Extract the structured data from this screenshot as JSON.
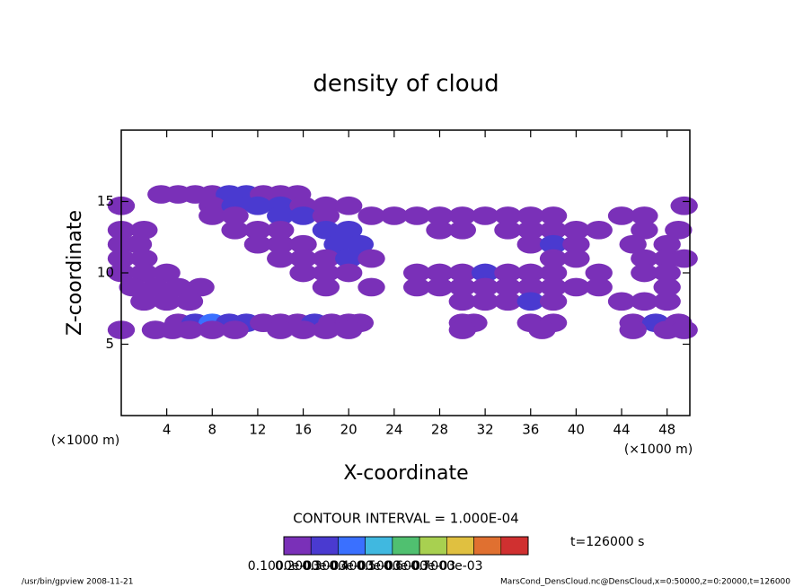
{
  "chart_data": {
    "type": "contour",
    "title": "density of cloud",
    "x_label": "X-coordinate",
    "y_label": "Z-coordinate",
    "x_unit": "(×1000 m)",
    "y_unit": "(×1000 m)",
    "contour_interval": "CONTOUR INTERVAL = 1.000E-04",
    "time_label": "t=126000 s",
    "footer_left": "/usr/bin/gpview  2008-11-21",
    "footer_right": "MarsCond_DensCloud.nc@DensCloud,x=0:50000,z=0:20000,t=126000",
    "xlim": [
      0,
      50
    ],
    "ylim": [
      0,
      20
    ],
    "xticks": [
      4,
      8,
      12,
      16,
      20,
      24,
      28,
      32,
      36,
      40,
      44,
      48
    ],
    "yticks": [
      5,
      10,
      15
    ],
    "x": [
      3.5,
      5,
      6.5,
      8,
      9.5,
      11,
      12.5,
      14,
      15.5,
      0,
      8,
      10,
      12,
      14,
      16,
      18,
      20,
      49.5,
      8,
      10,
      14,
      16,
      18,
      22,
      24,
      26,
      28,
      30,
      32,
      34,
      36,
      38,
      44,
      46,
      0,
      2,
      10,
      12,
      14,
      18,
      20,
      28,
      30,
      34,
      36,
      38,
      40,
      42,
      46,
      49,
      0,
      1.5,
      12,
      14,
      16,
      19,
      21,
      36,
      38,
      40,
      45,
      48,
      0,
      2,
      14,
      16,
      18,
      20,
      22,
      38,
      40,
      46,
      48,
      49.5,
      0,
      2,
      4,
      16,
      18,
      20,
      26,
      28,
      30,
      32,
      34,
      36,
      38,
      42,
      46,
      48,
      1,
      3,
      5,
      7,
      18,
      22,
      26,
      28,
      30,
      32,
      34,
      36,
      38,
      40,
      42,
      48,
      2,
      4,
      6,
      30,
      32,
      34,
      36,
      38,
      44,
      46,
      48,
      5,
      6.5,
      8,
      9.5,
      11,
      12.5,
      14,
      15.5,
      17,
      18.5,
      20,
      21,
      30,
      31,
      36,
      38,
      45,
      47,
      49,
      0,
      3,
      4.5,
      6,
      8,
      10,
      14,
      16,
      18,
      20,
      30,
      37,
      45,
      48,
      49.5
    ],
    "z": [
      15.5,
      15.5,
      15.5,
      15.5,
      15.5,
      15.5,
      15.5,
      15.5,
      15.5,
      14.7,
      14.7,
      14.7,
      14.7,
      14.7,
      14.7,
      14.7,
      14.7,
      14.7,
      14,
      14,
      14,
      14,
      14,
      14,
      14,
      14,
      14,
      14,
      14,
      14,
      14,
      14,
      14,
      14,
      13,
      13,
      13,
      13,
      13,
      13,
      13,
      13,
      13,
      13,
      13,
      13,
      13,
      13,
      13,
      13,
      12,
      12,
      12,
      12,
      12,
      12,
      12,
      12,
      12,
      12,
      12,
      12,
      11,
      11,
      11,
      11,
      11,
      11,
      11,
      11,
      11,
      11,
      11,
      11,
      10,
      10,
      10,
      10,
      10,
      10,
      10,
      10,
      10,
      10,
      10,
      10,
      10,
      10,
      10,
      10,
      9,
      9,
      9,
      9,
      9,
      9,
      9,
      9,
      9,
      9,
      9,
      9,
      9,
      9,
      9,
      9,
      8,
      8,
      8,
      8,
      8,
      8,
      8,
      8,
      8,
      8,
      8,
      6.5,
      6.5,
      6.5,
      6.5,
      6.5,
      6.5,
      6.5,
      6.5,
      6.5,
      6.5,
      6.5,
      6.5,
      6.5,
      6.5,
      6.5,
      6.5,
      6.5,
      6.5,
      6.5,
      6,
      6,
      6,
      6,
      6,
      6,
      6,
      6,
      6,
      6,
      6,
      6,
      6,
      6,
      6
    ],
    "values": [
      0.00012,
      0.00013,
      0.00012,
      0.00015,
      0.00026,
      0.00022,
      0.00016,
      0.00014,
      0.00013,
      0.00012,
      0.00015,
      0.00022,
      0.0002,
      0.00026,
      0.00018,
      0.00015,
      0.00013,
      0.00013,
      0.00014,
      0.00016,
      0.00028,
      0.00022,
      0.00016,
      0.00013,
      0.00013,
      0.00014,
      0.00013,
      0.00013,
      0.00014,
      0.00013,
      0.00013,
      0.00012,
      0.00012,
      0.00012,
      0.00012,
      0.00012,
      0.00014,
      0.00016,
      0.00015,
      0.0002,
      0.00024,
      0.00013,
      0.00013,
      0.00013,
      0.00014,
      0.00016,
      0.00015,
      0.00013,
      0.00012,
      0.00012,
      0.00013,
      0.00013,
      0.00015,
      0.00018,
      0.00016,
      0.00026,
      0.00022,
      0.00013,
      0.0002,
      0.00015,
      0.00013,
      0.00012,
      0.00014,
      0.00013,
      0.00016,
      0.00019,
      0.00018,
      0.00028,
      0.00015,
      0.00013,
      0.00013,
      0.00012,
      0.00013,
      0.00013,
      0.00015,
      0.00014,
      0.00013,
      0.00015,
      0.00016,
      0.00015,
      0.00013,
      0.00015,
      0.00018,
      0.0002,
      0.00016,
      0.00014,
      0.00013,
      0.00012,
      0.00012,
      0.00013,
      0.00014,
      0.00015,
      0.00018,
      0.00015,
      0.00013,
      0.00014,
      0.00014,
      0.00015,
      0.00016,
      0.00018,
      0.00017,
      0.00015,
      0.00014,
      0.00013,
      0.00012,
      0.00013,
      0.00013,
      0.00014,
      0.00013,
      0.00014,
      0.00015,
      0.00017,
      0.00022,
      0.00015,
      0.00013,
      0.00018,
      0.00013,
      0.00016,
      0.00022,
      0.00034,
      0.00026,
      0.0002,
      0.00016,
      0.00016,
      0.00018,
      0.0002,
      0.00018,
      0.00016,
      0.00014,
      0.00013,
      0.00015,
      0.00013,
      0.00013,
      0.00016,
      0.0002,
      0.00018,
      0.00013,
      0.00013,
      0.00014,
      0.00015,
      0.00016,
      0.00015,
      0.00014,
      0.00015,
      0.00016,
      0.00015,
      0.00013,
      0.00012,
      0.00013,
      0.00014,
      0.00016
    ],
    "colorbar": {
      "levels": [
        0.0001,
        0.0002,
        0.0003,
        0.0004,
        0.0005,
        0.0006,
        0.0007,
        0.0008,
        0.0009,
        0.001
      ],
      "colors": [
        "#7a30b8",
        "#4a3ad0",
        "#3a70ff",
        "#40b8e0",
        "#50c070",
        "#a8d050",
        "#e0c040",
        "#e07030",
        "#d03030"
      ],
      "tick_labels": [
        {
          "value": 0.0001,
          "label": "0.1000e-03"
        },
        {
          "value": 0.0002,
          "label": "0.2000e-03"
        },
        {
          "value": 0.0003,
          "label": "0.3000e-03"
        },
        {
          "value": 0.0004,
          "label": "0.4000e-03"
        },
        {
          "value": 0.0005,
          "label": "0.5000e-03"
        },
        {
          "value": 0.0006,
          "label": "0.6000e-03"
        },
        {
          "value": 0.0007,
          "label": "0.7000e-03"
        }
      ]
    }
  }
}
